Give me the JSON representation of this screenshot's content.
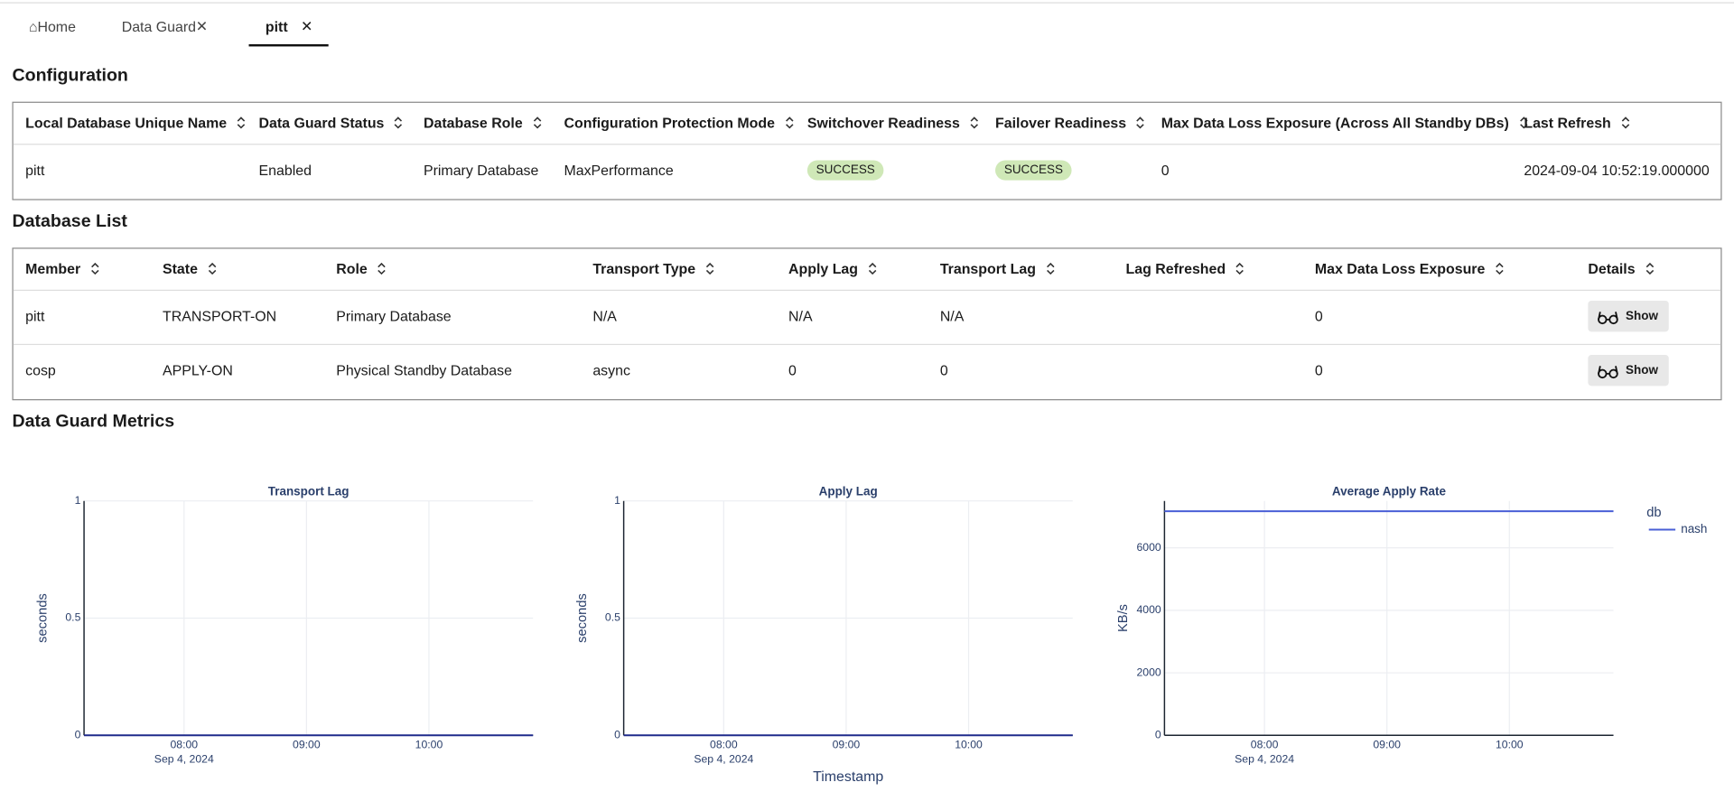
{
  "tabs": [
    {
      "label": "Home"
    },
    {
      "label": "Data Guard"
    },
    {
      "label": "pitt"
    }
  ],
  "configuration": {
    "title": "Configuration",
    "columns": [
      "Local Database Unique Name",
      "Data Guard Status",
      "Database Role",
      "Configuration Protection Mode",
      "Switchover Readiness",
      "Failover Readiness",
      "Max Data Loss Exposure (Across All Standby DBs)",
      "Last Refresh"
    ],
    "rows": [
      [
        "pitt",
        "Enabled",
        "Primary Database",
        "MaxPerformance",
        "SUCCESS",
        "SUCCESS",
        0,
        "2024-09-04 10:52:19.000000"
      ]
    ]
  },
  "database_list": {
    "title": "Database List",
    "columns": [
      "Member",
      "State",
      "Role",
      "Transport Type",
      "Apply Lag",
      "Transport Lag",
      "Lag Refreshed",
      "Max Data Loss Exposure",
      "Details"
    ],
    "rows": [
      [
        "pitt",
        "TRANSPORT-ON",
        "Primary Database",
        "N/A",
        "N/A",
        "N/A",
        null,
        0,
        "Show"
      ],
      [
        "cosp",
        "APPLY-ON",
        "Physical Standby Database",
        "async",
        0,
        0,
        null,
        0,
        "Show"
      ]
    ]
  },
  "metrics": {
    "title": "Data Guard Metrics"
  },
  "chart_data": [
    {
      "type": "line",
      "title": "Transport Lag",
      "y_label": "seconds",
      "x": [
        "2024-09-04 07:11",
        "2024-09-04 10:51"
      ],
      "series": [
        {
          "color": "#1f2a8c",
          "values": [
            0,
            0
          ]
        }
      ],
      "xlim": [
        "2024-09-04 07:11",
        "2024-09-04 10:51"
      ],
      "xticks": [
        {
          "value": "2024-09-04 08:00",
          "label": "08:00"
        },
        {
          "value": "2024-09-04 09:00",
          "label": "09:00"
        },
        {
          "value": "2024-09-04 10:00",
          "label": "10:00"
        }
      ],
      "x_date_label": "Sep 4, 2024",
      "ylim": [
        0,
        1
      ],
      "yticks": [
        0,
        0.5,
        1
      ],
      "grid": true
    },
    {
      "type": "line",
      "title": "Apply Lag",
      "y_label": "seconds",
      "x_label": "Timestamp",
      "x": [
        "2024-09-04 07:11",
        "2024-09-04 10:51"
      ],
      "series": [
        {
          "color": "#1f2a8c",
          "values": [
            0,
            0
          ]
        }
      ],
      "xlim": [
        "2024-09-04 07:11",
        "2024-09-04 10:51"
      ],
      "xticks": [
        {
          "value": "2024-09-04 08:00",
          "label": "08:00"
        },
        {
          "value": "2024-09-04 09:00",
          "label": "09:00"
        },
        {
          "value": "2024-09-04 10:00",
          "label": "10:00"
        }
      ],
      "x_date_label": "Sep 4, 2024",
      "ylim": [
        0,
        1
      ],
      "yticks": [
        0,
        0.5,
        1
      ],
      "grid": true
    },
    {
      "type": "line",
      "title": "Average Apply Rate",
      "y_label": "KB/s",
      "legend_title": "db",
      "x": [
        "2024-09-04 07:11",
        "2024-09-04 10:51"
      ],
      "series": [
        {
          "name": "nash",
          "color": "#4a5fd6",
          "values": [
            7170,
            7170
          ]
        }
      ],
      "xlim": [
        "2024-09-04 07:11",
        "2024-09-04 10:51"
      ],
      "xticks": [
        {
          "value": "2024-09-04 08:00",
          "label": "08:00"
        },
        {
          "value": "2024-09-04 09:00",
          "label": "09:00"
        },
        {
          "value": "2024-09-04 10:00",
          "label": "10:00"
        }
      ],
      "x_date_label": "Sep 4, 2024",
      "ylim": [
        0,
        7500
      ],
      "yticks": [
        0,
        2000,
        4000,
        6000
      ],
      "grid": true,
      "legend": "top-right"
    }
  ]
}
